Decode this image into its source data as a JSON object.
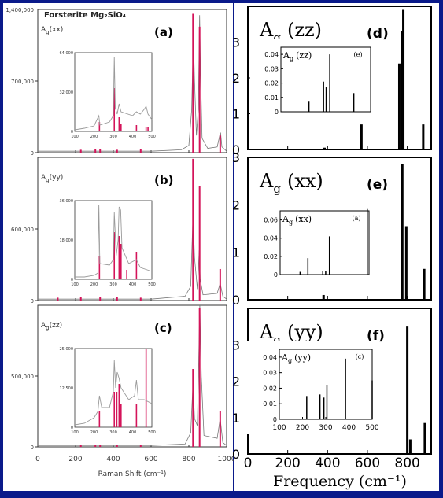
{
  "chart_data": [
    {
      "id": "left",
      "type": "bar",
      "title": "Forsterite Mg₂SiO₄",
      "xlabel": "Raman Shift (cm⁻¹)",
      "xlim": [
        0,
        1000
      ],
      "xticks": [
        0,
        200,
        400,
        600,
        800,
        1000
      ],
      "panels": [
        {
          "letter": "(a)",
          "species": "A",
          "sub": "g",
          "comp": "(xx)",
          "ylim": [
            0,
            1400000
          ],
          "yticks": [
            {
              "v": 0,
              "t": "0"
            },
            {
              "v": 700000,
              "t": "700,000"
            }
          ],
          "ytop": "1,400,000",
          "sticks": [
            [
              228,
              0.02
            ],
            [
              305,
              0.03
            ],
            [
              330,
              0.03
            ],
            [
              420,
              0.02
            ],
            [
              545,
              0.03
            ],
            [
              822,
              0.97
            ],
            [
              857,
              0.88
            ],
            [
              966,
              0.12
            ]
          ],
          "spectrum": [
            [
              0,
              0.01
            ],
            [
              200,
              0.01
            ],
            [
              600,
              0.01
            ],
            [
              760,
              0.02
            ],
            [
              800,
              0.05
            ],
            [
              815,
              0.3
            ],
            [
              824,
              0.82
            ],
            [
              830,
              0.5
            ],
            [
              840,
              0.12
            ],
            [
              850,
              0.3
            ],
            [
              857,
              0.96
            ],
            [
              862,
              0.55
            ],
            [
              870,
              0.1
            ],
            [
              900,
              0.03
            ],
            [
              950,
              0.04
            ],
            [
              962,
              0.11
            ],
            [
              968,
              0.14
            ],
            [
              975,
              0.04
            ],
            [
              1000,
              0.01
            ]
          ],
          "inset": {
            "xlim": [
              100,
              500
            ],
            "xticks": [
              "100",
              "200",
              "300",
              "400",
              "500"
            ],
            "ylim": [
              0,
              64000
            ],
            "yticks": [
              {
                "v": 0,
                "t": "0"
              },
              {
                "v": 32000,
                "t": "32,000"
              },
              {
                "v": 64000,
                "t": "64,000"
              }
            ],
            "sticks": [
              [
                228,
                0.12
              ],
              [
                305,
                0.55
              ],
              [
                330,
                0.18
              ],
              [
                340,
                0.1
              ],
              [
                420,
                0.08
              ],
              [
                470,
                0.06
              ],
              [
                480,
                0.05
              ]
            ],
            "spectrum": [
              [
                100,
                0.02
              ],
              [
                150,
                0.04
              ],
              [
                200,
                0.07
              ],
              [
                225,
                0.2
              ],
              [
                230,
                0.08
              ],
              [
                280,
                0.12
              ],
              [
                300,
                0.2
              ],
              [
                305,
                0.95
              ],
              [
                310,
                0.3
              ],
              [
                320,
                0.22
              ],
              [
                330,
                0.35
              ],
              [
                340,
                0.25
              ],
              [
                400,
                0.2
              ],
              [
                420,
                0.25
              ],
              [
                440,
                0.22
              ],
              [
                460,
                0.28
              ],
              [
                470,
                0.32
              ],
              [
                480,
                0.22
              ],
              [
                500,
                0.15
              ]
            ]
          }
        },
        {
          "letter": "(b)",
          "species": "A",
          "sub": "g",
          "comp": "(yy)",
          "ylim": [
            0,
            1200000
          ],
          "yticks": [
            {
              "v": 0,
              "t": "0"
            },
            {
              "v": 600000,
              "t": "600,000"
            }
          ],
          "ytop": "",
          "sticks": [
            [
              106,
              0.02
            ],
            [
              228,
              0.03
            ],
            [
              330,
              0.04
            ],
            [
              420,
              0.03
            ],
            [
              545,
              0.02
            ],
            [
              822,
              0.99
            ],
            [
              857,
              0.8
            ],
            [
              966,
              0.22
            ]
          ],
          "spectrum": [
            [
              0,
              0.01
            ],
            [
              200,
              0.01
            ],
            [
              600,
              0.01
            ],
            [
              780,
              0.03
            ],
            [
              810,
              0.1
            ],
            [
              822,
              0.6
            ],
            [
              830,
              0.3
            ],
            [
              845,
              0.08
            ],
            [
              855,
              0.35
            ],
            [
              860,
              0.15
            ],
            [
              875,
              0.04
            ],
            [
              950,
              0.05
            ],
            [
              966,
              0.12
            ],
            [
              980,
              0.03
            ],
            [
              1000,
              0.01
            ]
          ],
          "inset": {
            "xlim": [
              100,
              500
            ],
            "xticks": [
              "100",
              "200",
              "300",
              "400",
              "500"
            ],
            "ylim": [
              0,
              36000
            ],
            "yticks": [
              {
                "v": 0,
                "t": "0"
              },
              {
                "v": 18000,
                "t": "18,000"
              },
              {
                "v": 36000,
                "t": "36,000"
              }
            ],
            "sticks": [
              [
                228,
                0.3
              ],
              [
                305,
                0.6
              ],
              [
                330,
                0.55
              ],
              [
                340,
                0.45
              ],
              [
                370,
                0.12
              ],
              [
                420,
                0.35
              ]
            ],
            "spectrum": [
              [
                100,
                0.03
              ],
              [
                150,
                0.03
              ],
              [
                200,
                0.05
              ],
              [
                220,
                0.08
              ],
              [
                225,
                0.95
              ],
              [
                230,
                0.2
              ],
              [
                280,
                0.18
              ],
              [
                300,
                0.25
              ],
              [
                305,
                0.85
              ],
              [
                315,
                0.3
              ],
              [
                325,
                0.5
              ],
              [
                330,
                0.92
              ],
              [
                338,
                0.88
              ],
              [
                345,
                0.4
              ],
              [
                380,
                0.2
              ],
              [
                420,
                0.25
              ],
              [
                440,
                0.15
              ],
              [
                500,
                0.1
              ]
            ]
          }
        },
        {
          "letter": "(c)",
          "species": "A",
          "sub": "g",
          "comp": "(zz)",
          "ylim": [
            0,
            1000000
          ],
          "yticks": [
            {
              "v": 0,
              "t": "0"
            },
            {
              "v": 500000,
              "t": "500,000"
            }
          ],
          "ytop": "",
          "sticks": [
            [
              228,
              0.02
            ],
            [
              305,
              0.03
            ],
            [
              330,
              0.05
            ],
            [
              420,
              0.02
            ],
            [
              545,
              0.06
            ],
            [
              822,
              0.55
            ],
            [
              857,
              0.98
            ],
            [
              966,
              0.25
            ]
          ],
          "spectrum": [
            [
              0,
              0.01
            ],
            [
              200,
              0.01
            ],
            [
              600,
              0.01
            ],
            [
              780,
              0.02
            ],
            [
              810,
              0.1
            ],
            [
              822,
              0.45
            ],
            [
              830,
              0.2
            ],
            [
              845,
              0.15
            ],
            [
              852,
              0.6
            ],
            [
              858,
              1.0
            ],
            [
              866,
              0.5
            ],
            [
              880,
              0.08
            ],
            [
              950,
              0.06
            ],
            [
              966,
              0.2
            ],
            [
              980,
              0.03
            ],
            [
              1000,
              0.01
            ]
          ],
          "inset": {
            "xlim": [
              100,
              500
            ],
            "xticks": [
              "100",
              "200",
              "300",
              "400",
              "500"
            ],
            "ylim": [
              0,
              25000
            ],
            "yticks": [
              {
                "v": 0,
                "t": "0"
              },
              {
                "v": 12500,
                "t": "12,500"
              },
              {
                "v": 25000,
                "t": "25,000"
              }
            ],
            "sticks": [
              [
                228,
                0.2
              ],
              [
                305,
                0.45
              ],
              [
                318,
                0.45
              ],
              [
                330,
                0.55
              ],
              [
                340,
                0.3
              ],
              [
                420,
                0.3
              ],
              [
                470,
                1.0
              ]
            ],
            "spectrum": [
              [
                100,
                0.03
              ],
              [
                150,
                0.05
              ],
              [
                200,
                0.12
              ],
              [
                220,
                0.2
              ],
              [
                228,
                0.4
              ],
              [
                240,
                0.25
              ],
              [
                280,
                0.25
              ],
              [
                300,
                0.45
              ],
              [
                305,
                0.85
              ],
              [
                312,
                0.5
              ],
              [
                320,
                0.7
              ],
              [
                330,
                0.62
              ],
              [
                340,
                0.5
              ],
              [
                380,
                0.35
              ],
              [
                410,
                0.4
              ],
              [
                420,
                0.6
              ],
              [
                430,
                0.35
              ],
              [
                460,
                0.35
              ],
              [
                500,
                0.3
              ]
            ]
          }
        }
      ]
    },
    {
      "id": "right",
      "type": "bar",
      "xlabel": "Frequency  (cm⁻¹)",
      "xlim": [
        0,
        920
      ],
      "xticks": [
        0,
        200,
        400,
        600,
        800
      ],
      "panels": [
        {
          "letter": "(d)",
          "species": "A",
          "sub": "g",
          "comp": "(zz)",
          "ylim": [
            0,
            4
          ],
          "yticks": [
            "0",
            "1",
            "2",
            "3"
          ],
          "sticks": [
            [
              385,
              0.05
            ],
            [
              570,
              0.7
            ],
            [
              760,
              2.4
            ],
            [
              775,
              3.3
            ],
            [
              780,
              3.9
            ],
            [
              880,
              0.7
            ]
          ],
          "inset": {
            "label_species": "A",
            "label_sub": "g",
            "label_comp": "(zz)",
            "tag": "(e)",
            "xlim": [
              100,
              500
            ],
            "ylim": [
              0,
              0.045
            ],
            "yticks": [
              "0",
              "0.01",
              "0.02",
              "0.03",
              "0.04"
            ],
            "xticks": [],
            "sticks": [
              [
                225,
                0.007
              ],
              [
                290,
                0.021
              ],
              [
                302,
                0.017
              ],
              [
                318,
                0.04
              ],
              [
                425,
                0.013
              ]
            ]
          }
        },
        {
          "letter": "(e)",
          "species": "A",
          "sub": "g",
          "comp": "(xx)",
          "ylim": [
            0,
            3
          ],
          "yticks": [
            "0",
            "1",
            "2",
            "3"
          ],
          "sticks": [
            [
              380,
              0.1
            ],
            [
              775,
              2.85
            ],
            [
              795,
              1.55
            ],
            [
              885,
              0.65
            ]
          ],
          "inset": {
            "label_species": "A",
            "label_sub": "g",
            "label_comp": "(xx)",
            "tag": "(a)",
            "xlim": [
              100,
              500
            ],
            "ylim": [
              0,
              0.07
            ],
            "yticks": [
              "0",
              "0.02",
              "0.04",
              "0.06"
            ],
            "xticks": [],
            "sticks": [
              [
                190,
                0.003
              ],
              [
                225,
                0.018
              ],
              [
                292,
                0.004
              ],
              [
                305,
                0.004
              ],
              [
                322,
                0.042
              ],
              [
                492,
                0.072
              ]
            ]
          }
        },
        {
          "letter": "(f)",
          "species": "A",
          "sub": "g",
          "comp": "(yy)",
          "ylim": [
            0,
            4
          ],
          "yticks": [
            "0",
            "1",
            "2",
            "3"
          ],
          "sticks": [
            [
              800,
              3.5
            ],
            [
              815,
              0.4
            ],
            [
              888,
              0.85
            ]
          ],
          "inset": {
            "label_species": "A",
            "label_sub": "g",
            "label_comp": "(yy)",
            "tag": "(c)",
            "xlim": [
              100,
              500
            ],
            "ylim": [
              0,
              0.045
            ],
            "yticks": [
              "0",
              "0.01",
              "0.02",
              "0.03",
              "0.04"
            ],
            "xticks": [
              "100",
              "200",
              "300",
              "400",
              "500"
            ],
            "sticks": [
              [
                218,
                0.015
              ],
              [
                275,
                0.016
              ],
              [
                292,
                0.014
              ],
              [
                305,
                0.022
              ],
              [
                385,
                0.039
              ],
              [
                500,
                0.025
              ]
            ]
          }
        }
      ]
    }
  ]
}
